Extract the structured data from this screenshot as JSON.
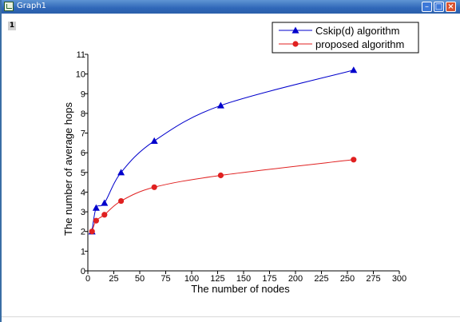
{
  "window": {
    "title": "Graph1",
    "layer_label": "1"
  },
  "colors": {
    "series1": "#0000cc",
    "series2": "#e02020",
    "titlebar": "#2f67b8"
  },
  "icons": {
    "minimize": "minimize-icon",
    "maximize": "maximize-icon",
    "close": "close-icon",
    "app": "graph-window-icon"
  },
  "chart_data": {
    "type": "line",
    "title": "",
    "xlabel": "The number of nodes",
    "ylabel": "The number of average hops",
    "xlim": [
      0,
      300
    ],
    "ylim": [
      0,
      11
    ],
    "xticks": [
      0,
      25,
      50,
      75,
      100,
      125,
      150,
      175,
      200,
      225,
      250,
      275,
      300
    ],
    "yticks": [
      0,
      1,
      2,
      3,
      4,
      5,
      6,
      7,
      8,
      9,
      10,
      11
    ],
    "grid": false,
    "legend_position": "top-right",
    "series": [
      {
        "name": "Cskip(d) algorithm",
        "marker": "triangle",
        "color": "#0000cc",
        "points": [
          [
            4,
            2.0
          ],
          [
            8,
            3.2
          ],
          [
            16,
            3.45
          ],
          [
            32,
            5.0
          ],
          [
            64,
            6.6
          ],
          [
            128,
            8.4
          ],
          [
            256,
            10.2
          ]
        ]
      },
      {
        "name": "proposed algorithm",
        "marker": "circle",
        "color": "#e02020",
        "points": [
          [
            4,
            2.0
          ],
          [
            8,
            2.55
          ],
          [
            16,
            2.85
          ],
          [
            32,
            3.55
          ],
          [
            64,
            4.25
          ],
          [
            128,
            4.85
          ],
          [
            256,
            5.65
          ]
        ]
      }
    ]
  }
}
